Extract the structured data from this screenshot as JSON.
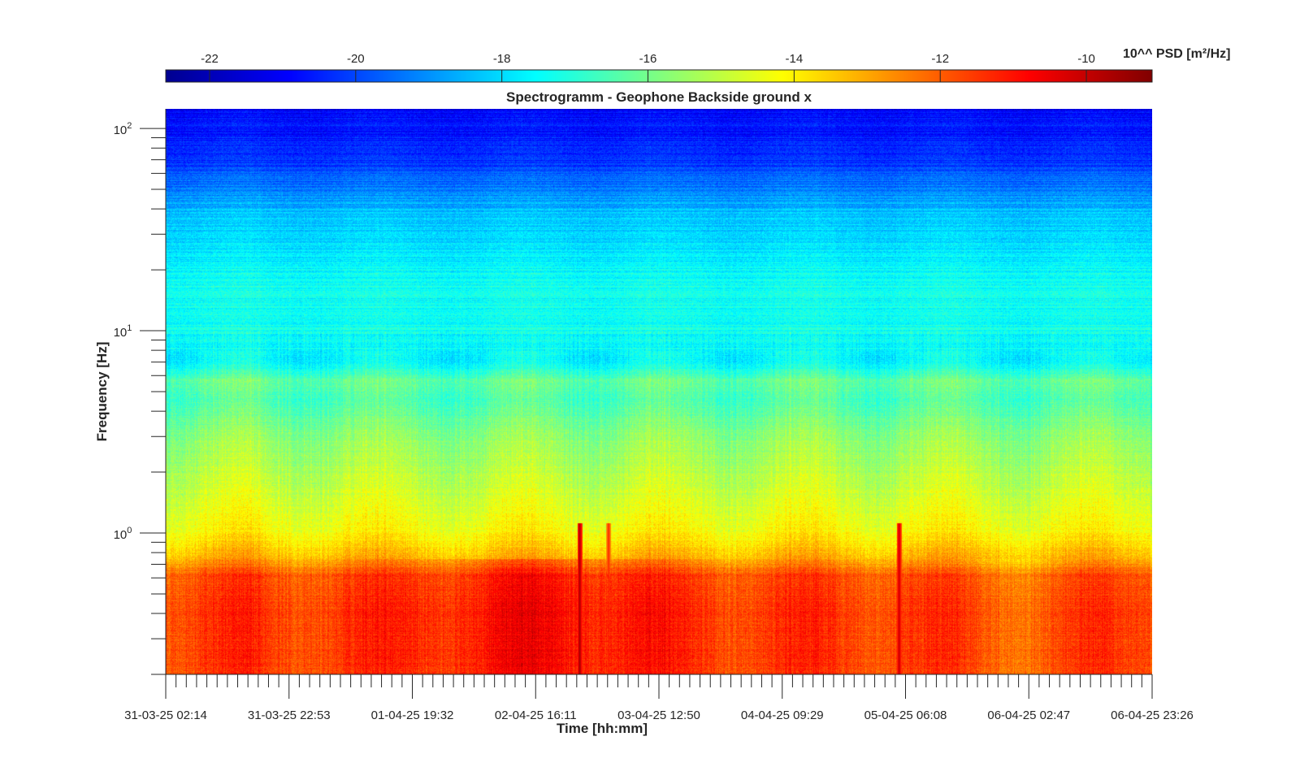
{
  "chart_data": {
    "type": "heatmap",
    "title": "Spectrogramm - Geophone Backside ground x",
    "xlabel": "Time [hh:mm]",
    "ylabel": "Frequency [Hz]",
    "x_ticks": [
      "31-03-25 02:14",
      "31-03-25 22:53",
      "01-04-25 19:32",
      "02-04-25 16:11",
      "03-04-25 12:50",
      "04-04-25 09:29",
      "05-04-25 06:08",
      "06-04-25 02:47",
      "06-04-25 23:26"
    ],
    "y_scale": "log",
    "y_ticks": [
      {
        "base": "10",
        "exp": "0",
        "value": 1
      },
      {
        "base": "10",
        "exp": "1",
        "value": 10
      },
      {
        "base": "10",
        "exp": "2",
        "value": 100
      }
    ],
    "ylim": [
      0.2,
      125
    ],
    "colormap": "jet",
    "colorbar": {
      "label": "10^^ PSD [m²/Hz]",
      "ticks": [
        "-22",
        "-20",
        "-18",
        "-16",
        "-14",
        "-12",
        "-10"
      ],
      "range": [
        -22.6,
        -9.1
      ]
    },
    "grid": false,
    "z_profile_by_frequency": [
      {
        "f": 0.2,
        "z": -11.6
      },
      {
        "f": 0.4,
        "z": -11.5
      },
      {
        "f": 0.62,
        "z": -11.8
      },
      {
        "f": 0.78,
        "z": -13.3
      },
      {
        "f": 1.0,
        "z": -14.1
      },
      {
        "f": 1.4,
        "z": -14.6
      },
      {
        "f": 2.0,
        "z": -15.1
      },
      {
        "f": 3.0,
        "z": -15.6
      },
      {
        "f": 4.5,
        "z": -16.5
      },
      {
        "f": 5.7,
        "z": -16.2
      },
      {
        "f": 7.0,
        "z": -17.6
      },
      {
        "f": 10,
        "z": -17.3
      },
      {
        "f": 17,
        "z": -17.4
      },
      {
        "f": 25,
        "z": -17.7
      },
      {
        "f": 40,
        "z": -18.5
      },
      {
        "f": 70,
        "z": -20.3
      },
      {
        "f": 125,
        "z": -20.9
      }
    ],
    "events": [
      {
        "time": "02-04-25 23:30",
        "z": -9.5
      },
      {
        "time": "03-04-25 04:20",
        "z": -11.0
      },
      {
        "time": "05-04-25 05:00",
        "z": -9.9
      }
    ]
  }
}
